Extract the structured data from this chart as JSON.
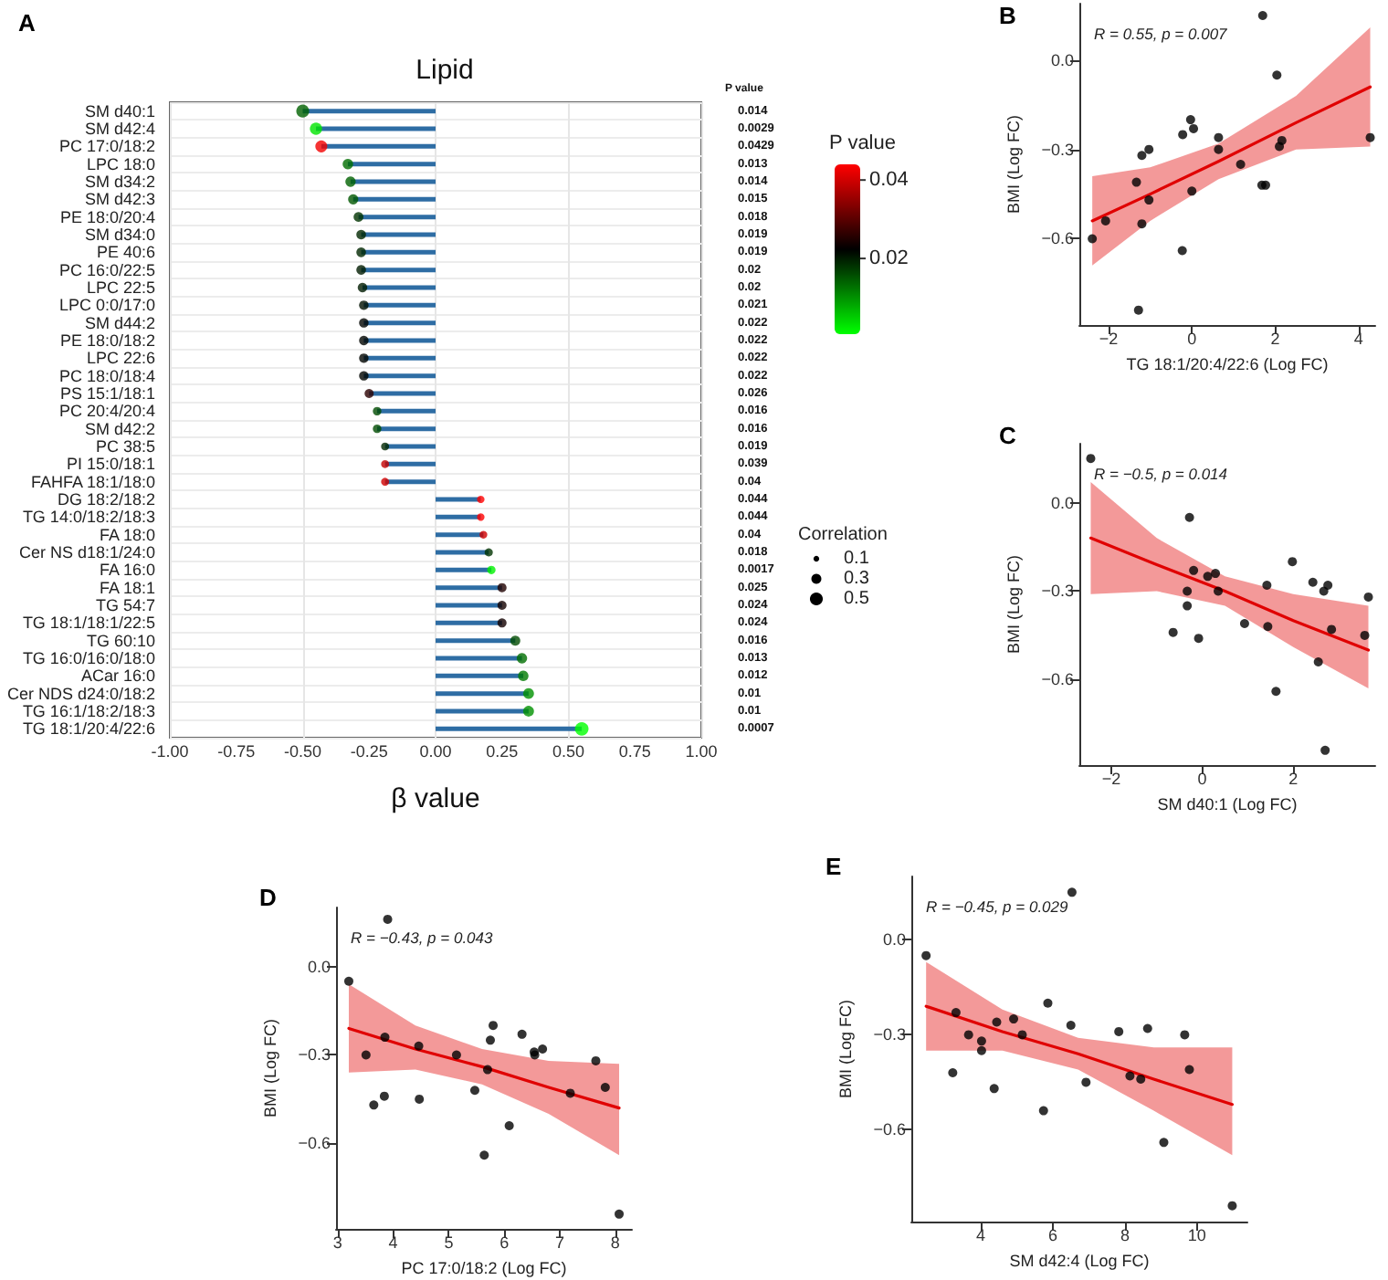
{
  "chart_data": [
    {
      "type": "lollipop",
      "orientation": "horizontal",
      "title": "Lipid",
      "xlabel": "β value",
      "legend_title": "Correlation",
      "clabel": "P value",
      "annotations": [
        "A",
        "P value"
      ],
      "categories": [
        "SM d40:1",
        "SM d42:4",
        "PC 17:0/18:2",
        "LPC 18:0",
        "SM d34:2",
        "SM d42:3",
        "PE 18:0/20:4",
        "SM d34:0",
        "PE 40:6",
        "PC 16:0/22:5",
        "LPC 22:5",
        "LPC 0:0/17:0",
        "SM d44:2",
        "PE 18:0/18:2",
        "LPC 22:6",
        "PC 18:0/18:4",
        "PS 15:1/18:1",
        "PC 20:4/20:4",
        "SM d42:2",
        "PC 38:5",
        "PI 15:0/18:1",
        "FAHFA 18:1/18:0",
        "DG 18:2/18:2",
        "TG 14:0/18:2/18:3",
        "FA 18:0",
        "Cer NS d18:1/24:0",
        "FA 16:0",
        "FA 18:1",
        "TG 54:7",
        "TG 18:1/18:1/22:5",
        "TG 60:10",
        "TG 16:0/16:0/18:0",
        "ACar 16:0",
        "Cer NDS d24:0/18:2",
        "TG 16:1/18:2/18:3",
        "TG 18:1/20:4/22:6"
      ],
      "values": [
        -0.5,
        -0.45,
        -0.43,
        -0.33,
        -0.32,
        -0.31,
        -0.29,
        -0.28,
        -0.28,
        -0.28,
        -0.275,
        -0.27,
        -0.27,
        -0.27,
        -0.27,
        -0.27,
        -0.25,
        -0.22,
        -0.22,
        -0.19,
        -0.19,
        -0.19,
        0.17,
        0.17,
        0.18,
        0.2,
        0.21,
        0.25,
        0.25,
        0.25,
        0.3,
        0.325,
        0.33,
        0.35,
        0.35,
        0.55
      ],
      "sizes": [
        0.5,
        0.45,
        0.43,
        0.33,
        0.32,
        0.31,
        0.29,
        0.28,
        0.28,
        0.28,
        0.275,
        0.27,
        0.27,
        0.27,
        0.27,
        0.27,
        0.25,
        0.22,
        0.22,
        0.19,
        0.19,
        0.19,
        0.17,
        0.17,
        0.18,
        0.2,
        0.21,
        0.25,
        0.25,
        0.25,
        0.3,
        0.325,
        0.33,
        0.35,
        0.35,
        0.55
      ],
      "cvalues": [
        0.014,
        0.0029,
        0.0429,
        0.013,
        0.014,
        0.015,
        0.018,
        0.019,
        0.019,
        0.02,
        0.02,
        0.021,
        0.022,
        0.022,
        0.022,
        0.022,
        0.026,
        0.016,
        0.016,
        0.019,
        0.039,
        0.04,
        0.044,
        0.044,
        0.04,
        0.018,
        0.0017,
        0.025,
        0.024,
        0.024,
        0.016,
        0.013,
        0.012,
        0.01,
        0.01,
        0.0007
      ],
      "y2_categories": [
        "0.014",
        "0.0029",
        "0.0429",
        "0.013",
        "0.014",
        "0.015",
        "0.018",
        "0.019",
        "0.019",
        "0.02",
        "0.02",
        "0.021",
        "0.022",
        "0.022",
        "0.022",
        "0.022",
        "0.026",
        "0.016",
        "0.016",
        "0.019",
        "0.039",
        "0.04",
        "0.044",
        "0.044",
        "0.04",
        "0.018",
        "0.0017",
        "0.025",
        "0.024",
        "0.024",
        "0.016",
        "0.013",
        "0.012",
        "0.01",
        "0.01",
        "0.0007"
      ],
      "clim": [
        0.0007,
        0.044
      ],
      "cticks": [
        0.02,
        0.04
      ],
      "size_legend": [
        0.1,
        0.3,
        0.5
      ],
      "xlim": [
        -1,
        1
      ],
      "xticks": [
        {
          "value": -1,
          "label": "-1.00"
        },
        {
          "value": -0.75,
          "label": "-0.75"
        },
        {
          "value": -0.5,
          "label": "-0.50"
        },
        {
          "value": -0.25,
          "label": "-0.25"
        },
        {
          "value": 0,
          "label": "0.00"
        },
        {
          "value": 0.25,
          "label": "0.25"
        },
        {
          "value": 0.5,
          "label": "0.50"
        },
        {
          "value": 0.75,
          "label": "0.75"
        },
        {
          "value": 1,
          "label": "1.00"
        }
      ],
      "grid": true
    },
    {
      "type": "scatter",
      "annotations": [
        "B",
        "R = 0.55, p = 0.007"
      ],
      "xlabel": "TG 18:1/20:4/22:6 (Log FC)",
      "ylabel": "BMI (Log FC)",
      "xlim": [
        -2.7,
        4.4
      ],
      "xticks": [
        {
          "value": -2,
          "label": "−2"
        },
        0,
        2,
        4
      ],
      "ylim": [
        -0.89,
        0.19
      ],
      "yticks": [
        {
          "value": 0,
          "label": "0.0"
        },
        {
          "value": -0.3,
          "label": "−0.3"
        },
        {
          "value": -0.6,
          "label": "−0.6"
        }
      ],
      "series": [
        {
          "color": "#000000",
          "marker": "circle",
          "x": [
            -2.39,
            -2.07,
            -1.33,
            -1.2,
            -1.2,
            -1.03,
            -1.03,
            -1.28,
            -0.23,
            -0.22,
            -0.03,
            0.04,
            0,
            0.64,
            0.64,
            1.17,
            1.7,
            1.68,
            1.77,
            2.04,
            2.1,
            2.16,
            4.28
          ],
          "values": [
            -0.6,
            -0.54,
            -0.41,
            -0.32,
            -0.55,
            -0.3,
            -0.47,
            -0.84,
            -0.64,
            -0.25,
            -0.2,
            -0.23,
            -0.44,
            -0.26,
            -0.3,
            -0.35,
            0.15,
            -0.42,
            -0.42,
            -0.05,
            -0.29,
            -0.27,
            -0.26
          ]
        },
        {
          "type": "line",
          "color": "#e00000",
          "x": [
            -2.39,
            -1,
            0.64,
            2.5,
            4.28
          ],
          "values": [
            -0.54,
            -0.45,
            -0.34,
            -0.21,
            -0.09
          ],
          "lower": [
            -0.69,
            -0.54,
            -0.4,
            -0.3,
            -0.29
          ],
          "upper": [
            -0.39,
            -0.36,
            -0.28,
            -0.12,
            0.11
          ]
        }
      ]
    },
    {
      "type": "scatter",
      "annotations": [
        "C",
        "R = −0.5, p = 0.014"
      ],
      "xlabel": "SM d40:1 (Log FC)",
      "ylabel": "BMI (Log FC)",
      "xlim": [
        -2.7,
        3.8
      ],
      "xticks": [
        {
          "value": -2,
          "label": "−2"
        },
        0,
        2
      ],
      "ylim": [
        -0.89,
        0.2
      ],
      "yticks": [
        {
          "value": 0,
          "label": "0.0"
        },
        {
          "value": -0.3,
          "label": "−0.3"
        },
        {
          "value": -0.6,
          "label": "−0.6"
        }
      ],
      "series": [
        {
          "color": "#000000",
          "marker": "circle",
          "x": [
            -2.45,
            -0.28,
            -0.64,
            -0.19,
            -0.33,
            -0.33,
            -0.08,
            0.12,
            0.29,
            0.35,
            0.93,
            1.42,
            1.44,
            1.62,
            1.98,
            2.43,
            2.55,
            2.67,
            2.76,
            2.7,
            2.84,
            3.57,
            3.65
          ],
          "values": [
            0.15,
            -0.05,
            -0.44,
            -0.23,
            -0.3,
            -0.35,
            -0.46,
            -0.25,
            -0.24,
            -0.3,
            -0.41,
            -0.28,
            -0.42,
            -0.64,
            -0.2,
            -0.27,
            -0.54,
            -0.3,
            -0.28,
            -0.84,
            -0.43,
            -0.45,
            -0.32
          ]
        },
        {
          "type": "line",
          "color": "#e00000",
          "x": [
            -2.45,
            -1,
            0.5,
            2,
            3.65
          ],
          "values": [
            -0.12,
            -0.21,
            -0.3,
            -0.4,
            -0.5
          ],
          "lower": [
            -0.31,
            -0.3,
            -0.35,
            -0.49,
            -0.63
          ],
          "upper": [
            0.07,
            -0.12,
            -0.25,
            -0.31,
            -0.35
          ]
        }
      ]
    },
    {
      "type": "scatter",
      "annotations": [
        "D",
        "R = −0.43, p = 0.043"
      ],
      "xlabel": "PC 17:0/18:2 (Log FC)",
      "ylabel": "BMI (Log FC)",
      "xlim": [
        2.97,
        8.3
      ],
      "xticks": [
        3,
        4,
        5,
        6,
        7,
        8
      ],
      "ylim": [
        -0.89,
        0.2
      ],
      "yticks": [
        {
          "value": 0,
          "label": "0.0"
        },
        {
          "value": -0.3,
          "label": "−0.3"
        },
        {
          "value": -0.6,
          "label": "−0.6"
        }
      ],
      "series": [
        {
          "color": "#000000",
          "marker": "circle",
          "x": [
            3.2,
            3.9,
            3.51,
            3.65,
            3.85,
            3.84,
            4.46,
            4.47,
            5.14,
            5.47,
            5.64,
            5.7,
            5.75,
            5.8,
            6.09,
            6.32,
            6.54,
            6.55,
            6.69,
            7.19,
            7.65,
            7.82,
            8.07
          ],
          "values": [
            -0.05,
            0.16,
            -0.3,
            -0.47,
            -0.24,
            -0.44,
            -0.27,
            -0.45,
            -0.3,
            -0.42,
            -0.64,
            -0.35,
            -0.25,
            -0.2,
            -0.54,
            -0.23,
            -0.29,
            -0.3,
            -0.28,
            -0.43,
            -0.32,
            -0.41,
            -0.84
          ]
        },
        {
          "type": "line",
          "color": "#e00000",
          "x": [
            3.2,
            4.4,
            5.6,
            6.8,
            8.07
          ],
          "values": [
            -0.21,
            -0.28,
            -0.34,
            -0.41,
            -0.48
          ],
          "lower": [
            -0.36,
            -0.35,
            -0.4,
            -0.5,
            -0.64
          ],
          "upper": [
            -0.06,
            -0.2,
            -0.28,
            -0.32,
            -0.33
          ]
        }
      ]
    },
    {
      "type": "scatter",
      "annotations": [
        "E",
        "R = −0.45, p = 0.029"
      ],
      "xlabel": "SM d42:4 (Log FC)",
      "ylabel": "BMI (Log FC)",
      "xlim": [
        2.07,
        11.4
      ],
      "xticks": [
        4,
        6,
        8,
        10
      ],
      "ylim": [
        -0.89,
        0.2
      ],
      "yticks": [
        {
          "value": 0,
          "label": "0.0"
        },
        {
          "value": -0.3,
          "label": "−0.3"
        },
        {
          "value": -0.6,
          "label": "−0.6"
        }
      ],
      "series": [
        {
          "color": "#000000",
          "marker": "circle",
          "x": [
            2.48,
            6.53,
            3.31,
            3.22,
            3.66,
            4.02,
            4.02,
            4.37,
            4.44,
            4.91,
            5.15,
            5.74,
            5.86,
            6.5,
            6.92,
            7.83,
            8.14,
            8.44,
            8.63,
            9.08,
            9.66,
            9.79,
            10.98
          ],
          "values": [
            -0.05,
            0.15,
            -0.23,
            -0.42,
            -0.3,
            -0.32,
            -0.35,
            -0.47,
            -0.26,
            -0.25,
            -0.3,
            -0.54,
            -0.2,
            -0.27,
            -0.45,
            -0.29,
            -0.43,
            -0.44,
            -0.28,
            -0.64,
            -0.3,
            -0.41,
            -0.84
          ]
        },
        {
          "type": "line",
          "color": "#e00000",
          "x": [
            2.48,
            4.6,
            6.7,
            8.8,
            10.98
          ],
          "values": [
            -0.21,
            -0.29,
            -0.36,
            -0.44,
            -0.52
          ],
          "lower": [
            -0.35,
            -0.35,
            -0.41,
            -0.54,
            -0.68
          ],
          "upper": [
            -0.07,
            -0.22,
            -0.31,
            -0.34,
            -0.34
          ]
        }
      ]
    }
  ]
}
